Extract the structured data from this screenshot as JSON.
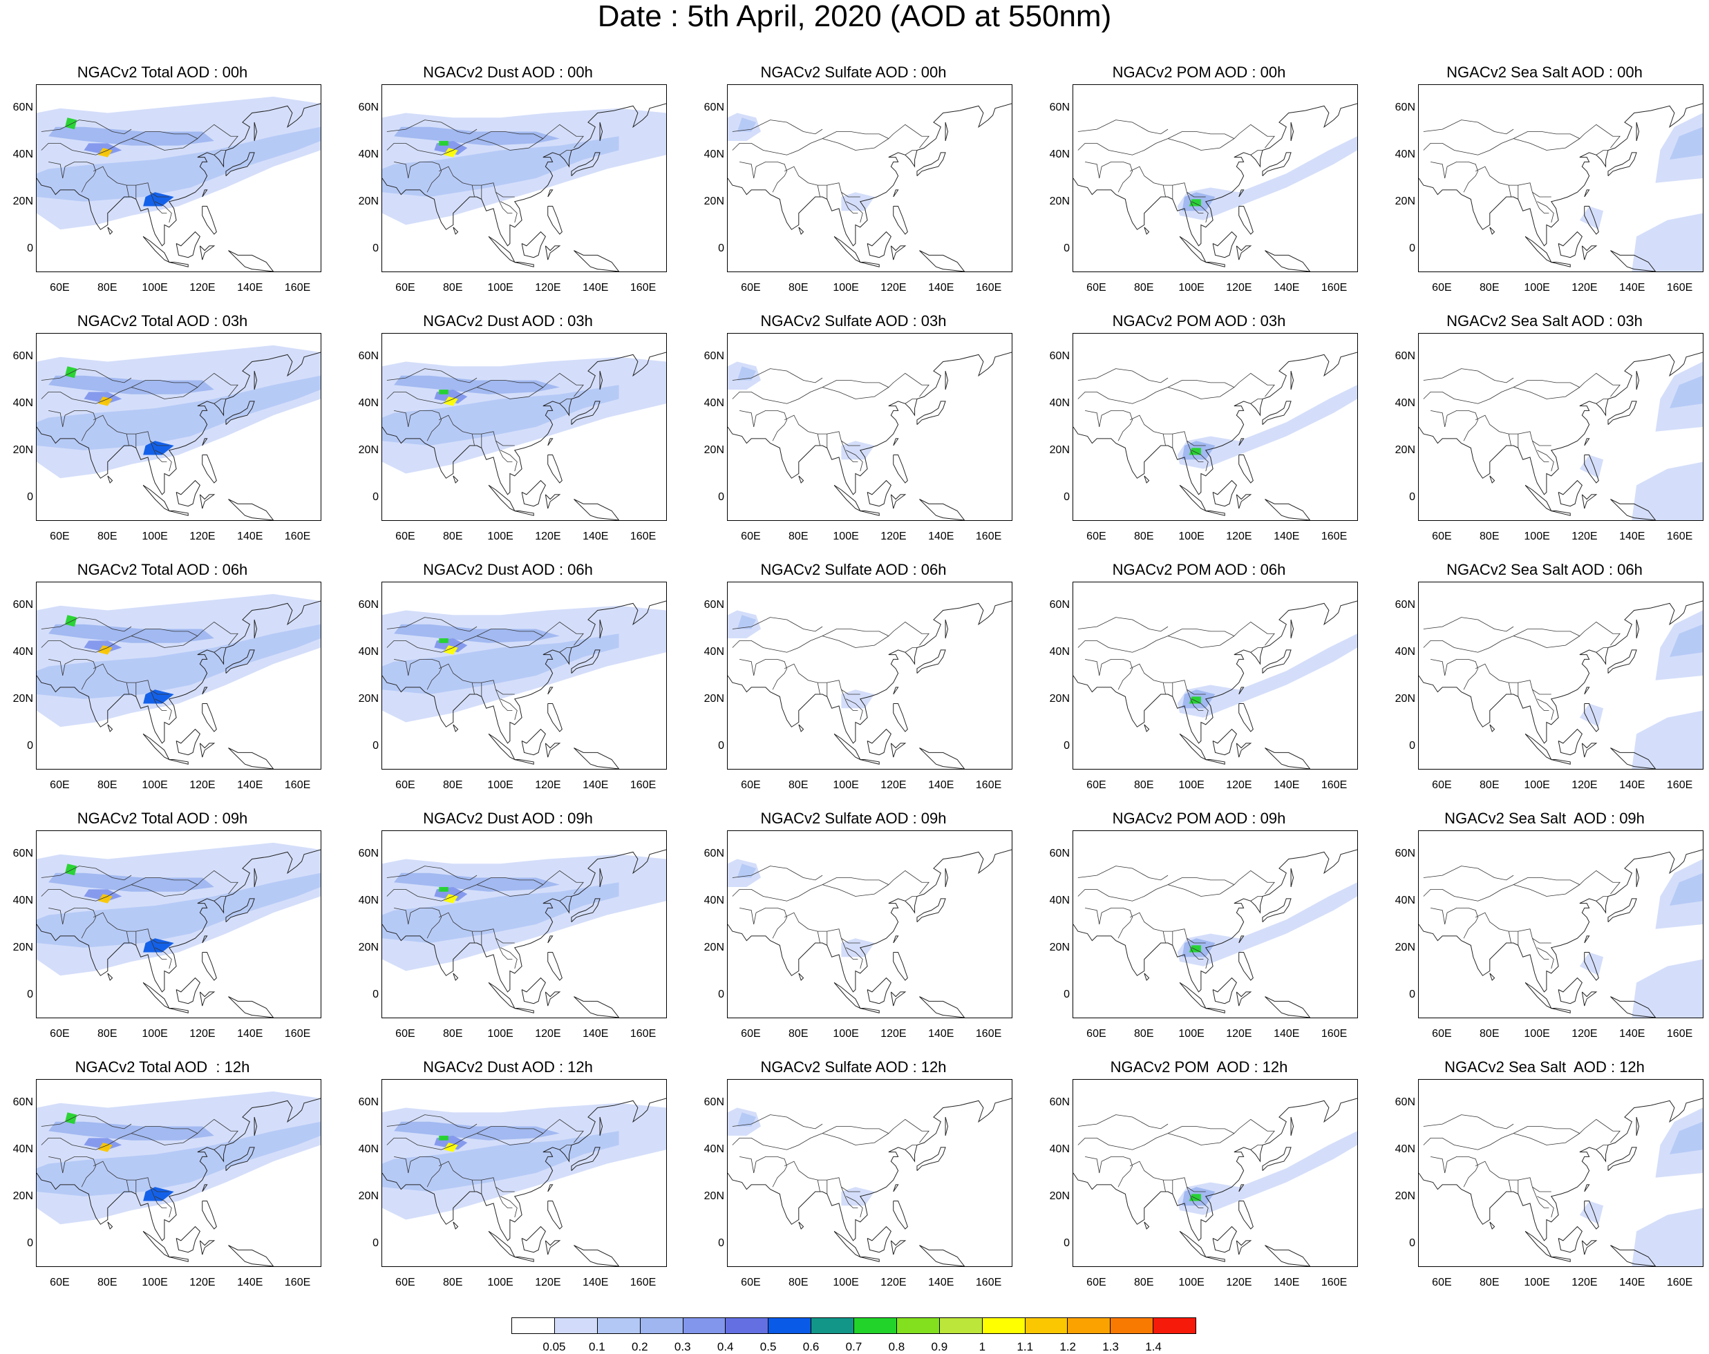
{
  "page": {
    "title": "Date : 5th April, 2020 (AOD at 550nm)"
  },
  "grid": {
    "hours": [
      "00h",
      "03h",
      "06h",
      "09h",
      "12h"
    ],
    "species": [
      "Total",
      "Dust",
      "Sulfate",
      "POM",
      "Sea Salt"
    ],
    "titles": [
      [
        "NGACv2 Total AOD : 00h",
        "NGACv2 Dust AOD : 00h",
        "NGACv2 Sulfate AOD : 00h",
        "NGACv2 POM AOD : 00h",
        "NGACv2 Sea Salt AOD : 00h"
      ],
      [
        "NGACv2 Total AOD : 03h",
        "NGACv2 Dust AOD : 03h",
        "NGACv2 Sulfate AOD : 03h",
        "NGACv2 POM AOD : 03h",
        "NGACv2 Sea Salt AOD : 03h"
      ],
      [
        "NGACv2 Total AOD : 06h",
        "NGACv2 Dust AOD : 06h",
        "NGACv2 Sulfate AOD : 06h",
        "NGACv2 POM AOD : 06h",
        "NGACv2 Sea Salt AOD : 06h"
      ],
      [
        "NGACv2 Total AOD : 09h",
        "NGACv2 Dust AOD : 09h",
        "NGACv2 Sulfate AOD : 09h",
        "NGACv2 POM AOD : 09h",
        "NGACv2 Sea Salt  AOD : 09h"
      ],
      [
        "NGACv2 Total AOD  : 12h",
        "NGACv2 Dust AOD : 12h",
        "NGACv2 Sulfate AOD : 12h",
        "NGACv2 POM  AOD : 12h",
        "NGACv2 Sea Salt  AOD : 12h"
      ]
    ]
  },
  "axes": {
    "x_ticks": [
      "60E",
      "80E",
      "100E",
      "120E",
      "140E",
      "160E"
    ],
    "y_ticks": [
      "60N",
      "40N",
      "20N",
      "0"
    ],
    "lon_range": [
      50,
      170
    ],
    "lat_range": [
      -10,
      70
    ]
  },
  "colorbar": {
    "labels": [
      "0.05",
      "0.1",
      "0.2",
      "0.3",
      "0.4",
      "0.5",
      "0.6",
      "0.7",
      "0.8",
      "0.9",
      "1",
      "1.1",
      "1.2",
      "1.3",
      "1.4"
    ],
    "colors": [
      "#ffffff",
      "#d2dcfa",
      "#b4c8f5",
      "#9fb6f0",
      "#8296ec",
      "#6470e2",
      "#0a5ae8",
      "#119688",
      "#22d32a",
      "#82e01e",
      "#bce63a",
      "#ffff00",
      "#fbc700",
      "#fba200",
      "#f97a00",
      "#f61a0a"
    ]
  }
}
